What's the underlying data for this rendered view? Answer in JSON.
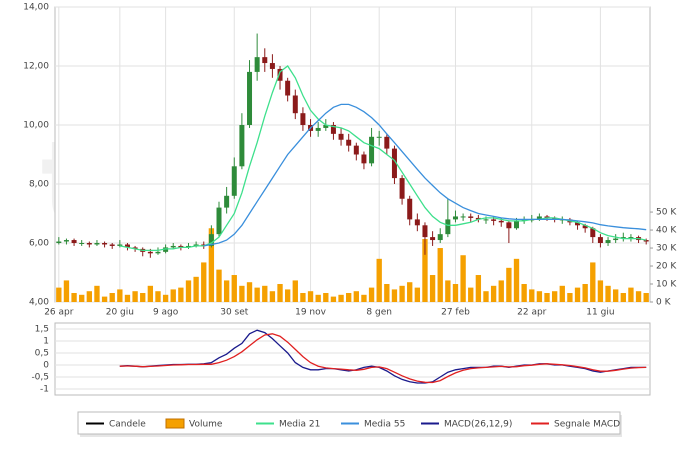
{
  "watermark": "teleborsa",
  "chart_data": [
    {
      "type": "candlestick",
      "grid": true,
      "categories": [
        "26 apr",
        null,
        null,
        null,
        null,
        null,
        null,
        null,
        "20 giu",
        null,
        null,
        null,
        null,
        null,
        "9 ago",
        null,
        null,
        null,
        null,
        null,
        null,
        null,
        null,
        "30 set",
        null,
        null,
        null,
        null,
        null,
        null,
        null,
        null,
        null,
        "19 nov",
        null,
        null,
        null,
        null,
        null,
        null,
        null,
        null,
        "8 gen",
        null,
        null,
        null,
        null,
        null,
        null,
        null,
        null,
        null,
        "27 feb",
        null,
        null,
        null,
        null,
        null,
        null,
        null,
        null,
        null,
        "22 apr",
        null,
        null,
        null,
        null,
        null,
        null,
        null,
        null,
        "11 giu",
        null,
        null,
        null,
        null,
        null,
        null
      ],
      "ylim": [
        4,
        14
      ],
      "yticks": [
        {
          "value": 4,
          "label": "4,00"
        },
        {
          "value": 6,
          "label": "6,00"
        },
        {
          "value": 8,
          "label": "8,00"
        },
        {
          "value": 10,
          "label": "10,00"
        },
        {
          "value": 12,
          "label": "12,00"
        },
        {
          "value": 14,
          "label": "14,00"
        }
      ],
      "y2lim": [
        0,
        164000
      ],
      "y2ticks": [
        {
          "value": 0,
          "label": "0 K"
        },
        {
          "value": 10000,
          "label": "10 K"
        },
        {
          "value": 20000,
          "label": "20 K"
        },
        {
          "value": 30000,
          "label": "30 K"
        },
        {
          "value": 40000,
          "label": "40 K"
        },
        {
          "value": 50000,
          "label": "50 K"
        }
      ],
      "series": [
        {
          "name": "Candele",
          "type": "candlestick",
          "color": "#000000",
          "up_color": "#2e8b3a",
          "down_color": "#8b1a1a",
          "values": [
            [
              6.0,
              6.2,
              5.95,
              6.05
            ],
            [
              6.05,
              6.15,
              5.95,
              6.1
            ],
            [
              6.1,
              6.15,
              5.9,
              6.0
            ],
            [
              6.0,
              6.1,
              5.9,
              6.0
            ],
            [
              6.0,
              6.05,
              5.85,
              5.95
            ],
            [
              5.95,
              6.1,
              5.9,
              6.0
            ],
            [
              6.0,
              6.05,
              5.85,
              5.95
            ],
            [
              5.95,
              6.0,
              5.8,
              5.9
            ],
            [
              5.9,
              6.1,
              5.85,
              5.95
            ],
            [
              5.95,
              6.0,
              5.75,
              5.85
            ],
            [
              5.85,
              5.9,
              5.7,
              5.8
            ],
            [
              5.8,
              5.85,
              5.55,
              5.7
            ],
            [
              5.7,
              5.8,
              5.5,
              5.65
            ],
            [
              5.65,
              5.85,
              5.6,
              5.7
            ],
            [
              5.7,
              5.95,
              5.65,
              5.85
            ],
            [
              5.85,
              6.0,
              5.8,
              5.9
            ],
            [
              5.9,
              5.95,
              5.75,
              5.85
            ],
            [
              5.85,
              6.0,
              5.8,
              5.9
            ],
            [
              5.9,
              6.05,
              5.85,
              5.95
            ],
            [
              5.95,
              6.05,
              5.8,
              5.9
            ],
            [
              5.9,
              6.6,
              5.85,
              6.3
            ],
            [
              6.3,
              7.4,
              6.2,
              7.2
            ],
            [
              7.2,
              7.9,
              7.0,
              7.6
            ],
            [
              7.6,
              8.9,
              7.5,
              8.6
            ],
            [
              8.6,
              10.4,
              8.5,
              10.0
            ],
            [
              10.0,
              12.2,
              9.9,
              11.8
            ],
            [
              11.8,
              13.1,
              11.5,
              12.3
            ],
            [
              12.3,
              12.6,
              11.8,
              12.1
            ],
            [
              12.1,
              12.4,
              11.6,
              11.9
            ],
            [
              11.9,
              12.0,
              11.2,
              11.5
            ],
            [
              11.5,
              11.6,
              10.8,
              11.0
            ],
            [
              11.0,
              11.2,
              10.2,
              10.4
            ],
            [
              10.4,
              10.6,
              9.8,
              10.0
            ],
            [
              10.0,
              10.2,
              9.6,
              9.8
            ],
            [
              9.8,
              10.1,
              9.6,
              9.9
            ],
            [
              9.9,
              10.2,
              9.8,
              10.0
            ],
            [
              10.0,
              10.1,
              9.5,
              9.7
            ],
            [
              9.7,
              9.9,
              9.3,
              9.5
            ],
            [
              9.5,
              9.7,
              9.1,
              9.3
            ],
            [
              9.3,
              9.4,
              8.8,
              9.0
            ],
            [
              9.0,
              9.1,
              8.5,
              8.7
            ],
            [
              8.7,
              9.9,
              8.6,
              9.6
            ],
            [
              9.6,
              9.8,
              9.3,
              9.6
            ],
            [
              9.6,
              9.7,
              9.0,
              9.2
            ],
            [
              9.2,
              9.3,
              8.0,
              8.2
            ],
            [
              8.2,
              8.3,
              7.3,
              7.5
            ],
            [
              7.5,
              7.6,
              6.6,
              6.8
            ],
            [
              6.8,
              7.0,
              6.4,
              6.6
            ],
            [
              6.6,
              6.7,
              5.6,
              6.2
            ],
            [
              6.2,
              6.4,
              5.9,
              6.1
            ],
            [
              6.1,
              6.5,
              6.0,
              6.3
            ],
            [
              6.3,
              7.5,
              6.2,
              6.8
            ],
            [
              6.8,
              7.1,
              6.7,
              6.9
            ],
            [
              6.9,
              7.0,
              6.75,
              6.9
            ],
            [
              6.9,
              7.0,
              6.7,
              6.85
            ],
            [
              6.85,
              6.95,
              6.7,
              6.8
            ],
            [
              6.8,
              6.9,
              6.65,
              6.8
            ],
            [
              6.8,
              6.9,
              6.6,
              6.75
            ],
            [
              6.75,
              6.85,
              6.55,
              6.7
            ],
            [
              6.7,
              6.75,
              6.0,
              6.5
            ],
            [
              6.5,
              6.85,
              6.45,
              6.75
            ],
            [
              6.75,
              6.9,
              6.65,
              6.8
            ],
            [
              6.8,
              6.95,
              6.7,
              6.8
            ],
            [
              6.8,
              7.0,
              6.75,
              6.9
            ],
            [
              6.9,
              6.95,
              6.75,
              6.85
            ],
            [
              6.85,
              6.9,
              6.7,
              6.8
            ],
            [
              6.8,
              6.9,
              6.65,
              6.8
            ],
            [
              6.8,
              6.85,
              6.6,
              6.7
            ],
            [
              6.7,
              6.75,
              6.45,
              6.6
            ],
            [
              6.6,
              6.65,
              6.35,
              6.5
            ],
            [
              6.5,
              6.55,
              6.0,
              6.2
            ],
            [
              6.2,
              6.3,
              5.85,
              6.0
            ],
            [
              6.0,
              6.2,
              5.9,
              6.1
            ],
            [
              6.1,
              6.3,
              6.0,
              6.15
            ],
            [
              6.15,
              6.35,
              6.05,
              6.2
            ],
            [
              6.2,
              6.3,
              6.05,
              6.2
            ],
            [
              6.2,
              6.25,
              6.0,
              6.1
            ],
            [
              6.1,
              6.15,
              5.95,
              6.05
            ]
          ]
        },
        {
          "name": "Volume",
          "type": "bar",
          "axis": "y2",
          "color": "#f5a000",
          "values": [
            8000,
            12000,
            5000,
            4000,
            6000,
            9000,
            3000,
            5000,
            7000,
            4000,
            6000,
            5000,
            9000,
            6000,
            4000,
            7000,
            8000,
            12000,
            14000,
            22000,
            41000,
            18000,
            12000,
            15000,
            9000,
            11000,
            8000,
            9000,
            6000,
            10000,
            7000,
            12000,
            5000,
            6000,
            4000,
            5000,
            3000,
            4000,
            5000,
            6000,
            4000,
            8000,
            24000,
            10000,
            7000,
            9000,
            11000,
            8000,
            35000,
            15000,
            30000,
            12000,
            10000,
            26000,
            8000,
            15000,
            6000,
            9000,
            12000,
            19000,
            24000,
            10000,
            7000,
            6000,
            5000,
            6000,
            9000,
            5000,
            8000,
            10000,
            22000,
            12000,
            9000,
            7000,
            5000,
            8000,
            6000,
            5000
          ]
        },
        {
          "name": "Media 21",
          "type": "line",
          "color": "#3ee08c",
          "values": [
            null,
            null,
            null,
            null,
            null,
            null,
            null,
            null,
            5.9,
            5.85,
            5.8,
            5.75,
            5.75,
            5.75,
            5.8,
            5.8,
            5.85,
            5.85,
            5.9,
            5.9,
            6.0,
            6.2,
            6.6,
            7.0,
            7.7,
            8.6,
            9.4,
            10.3,
            11.1,
            11.8,
            12.0,
            11.6,
            11.0,
            10.5,
            10.2,
            10.0,
            9.95,
            9.9,
            9.8,
            9.6,
            9.4,
            9.3,
            9.2,
            9.0,
            8.8,
            8.4,
            8.0,
            7.6,
            7.2,
            6.9,
            6.7,
            6.6,
            6.6,
            6.65,
            6.7,
            6.8,
            6.85,
            6.85,
            6.8,
            6.75,
            6.75,
            6.75,
            6.8,
            6.8,
            6.85,
            6.85,
            6.8,
            6.75,
            6.7,
            6.6,
            6.5,
            6.35,
            6.25,
            6.2,
            6.15,
            6.15,
            6.15,
            6.1
          ]
        },
        {
          "name": "Media 55",
          "type": "line",
          "color": "#3a8fdc",
          "values": [
            null,
            null,
            null,
            null,
            null,
            null,
            null,
            null,
            null,
            null,
            null,
            null,
            null,
            null,
            null,
            null,
            null,
            null,
            null,
            5.9,
            5.95,
            6.0,
            6.1,
            6.3,
            6.6,
            7.0,
            7.4,
            7.8,
            8.2,
            8.6,
            9.0,
            9.3,
            9.6,
            9.9,
            10.15,
            10.4,
            10.6,
            10.7,
            10.7,
            10.6,
            10.45,
            10.25,
            10.0,
            9.7,
            9.4,
            9.1,
            8.8,
            8.5,
            8.2,
            7.95,
            7.7,
            7.5,
            7.35,
            7.2,
            7.1,
            7.0,
            6.95,
            6.9,
            6.85,
            6.82,
            6.8,
            6.8,
            6.8,
            6.8,
            6.8,
            6.8,
            6.8,
            6.78,
            6.75,
            6.72,
            6.68,
            6.62,
            6.58,
            6.55,
            6.52,
            6.5,
            6.48,
            6.45
          ]
        }
      ]
    },
    {
      "type": "line",
      "grid": true,
      "ylim": [
        -1.25,
        1.75
      ],
      "yticks": [
        -1,
        {
          "value": -0.5,
          "label": "-0,5"
        },
        0,
        {
          "value": 0.5,
          "label": "0,5"
        },
        1,
        {
          "value": 1.5,
          "label": "1,5"
        }
      ],
      "series": [
        {
          "name": "MACD(26,12,9)",
          "type": "line",
          "color": "#1a1a8c",
          "values": [
            null,
            null,
            null,
            null,
            null,
            null,
            null,
            null,
            -0.05,
            -0.03,
            -0.05,
            -0.08,
            -0.05,
            -0.02,
            0,
            0.02,
            0.02,
            0.03,
            0.03,
            0.05,
            0.1,
            0.3,
            0.45,
            0.7,
            0.9,
            1.3,
            1.45,
            1.35,
            1.1,
            0.8,
            0.5,
            0.1,
            -0.1,
            -0.2,
            -0.2,
            -0.15,
            -0.15,
            -0.2,
            -0.25,
            -0.2,
            -0.1,
            -0.05,
            -0.1,
            -0.25,
            -0.45,
            -0.6,
            -0.7,
            -0.75,
            -0.75,
            -0.7,
            -0.5,
            -0.3,
            -0.2,
            -0.15,
            -0.1,
            -0.1,
            -0.1,
            -0.05,
            -0.05,
            -0.1,
            -0.05,
            0,
            0,
            0.05,
            0.05,
            0,
            0,
            -0.05,
            -0.1,
            -0.15,
            -0.25,
            -0.3,
            -0.25,
            -0.2,
            -0.15,
            -0.1,
            -0.1,
            -0.1
          ]
        },
        {
          "name": "Segnale MACD",
          "type": "line",
          "color": "#e02020",
          "values": [
            null,
            null,
            null,
            null,
            null,
            null,
            null,
            null,
            -0.05,
            -0.04,
            -0.05,
            -0.07,
            -0.06,
            -0.04,
            -0.02,
            0,
            0.01,
            0.02,
            0.02,
            0.03,
            0.03,
            0.1,
            0.2,
            0.35,
            0.55,
            0.8,
            1.05,
            1.25,
            1.3,
            1.2,
            0.95,
            0.65,
            0.35,
            0.1,
            -0.05,
            -0.12,
            -0.15,
            -0.17,
            -0.2,
            -0.22,
            -0.18,
            -0.1,
            -0.08,
            -0.15,
            -0.3,
            -0.45,
            -0.58,
            -0.67,
            -0.72,
            -0.73,
            -0.65,
            -0.48,
            -0.33,
            -0.22,
            -0.15,
            -0.12,
            -0.1,
            -0.08,
            -0.06,
            -0.08,
            -0.07,
            -0.03,
            -0.01,
            0.03,
            0.05,
            0.03,
            0.01,
            -0.02,
            -0.07,
            -0.12,
            -0.2,
            -0.26,
            -0.26,
            -0.22,
            -0.17,
            -0.13,
            -0.11,
            -0.1
          ]
        }
      ]
    }
  ]
}
